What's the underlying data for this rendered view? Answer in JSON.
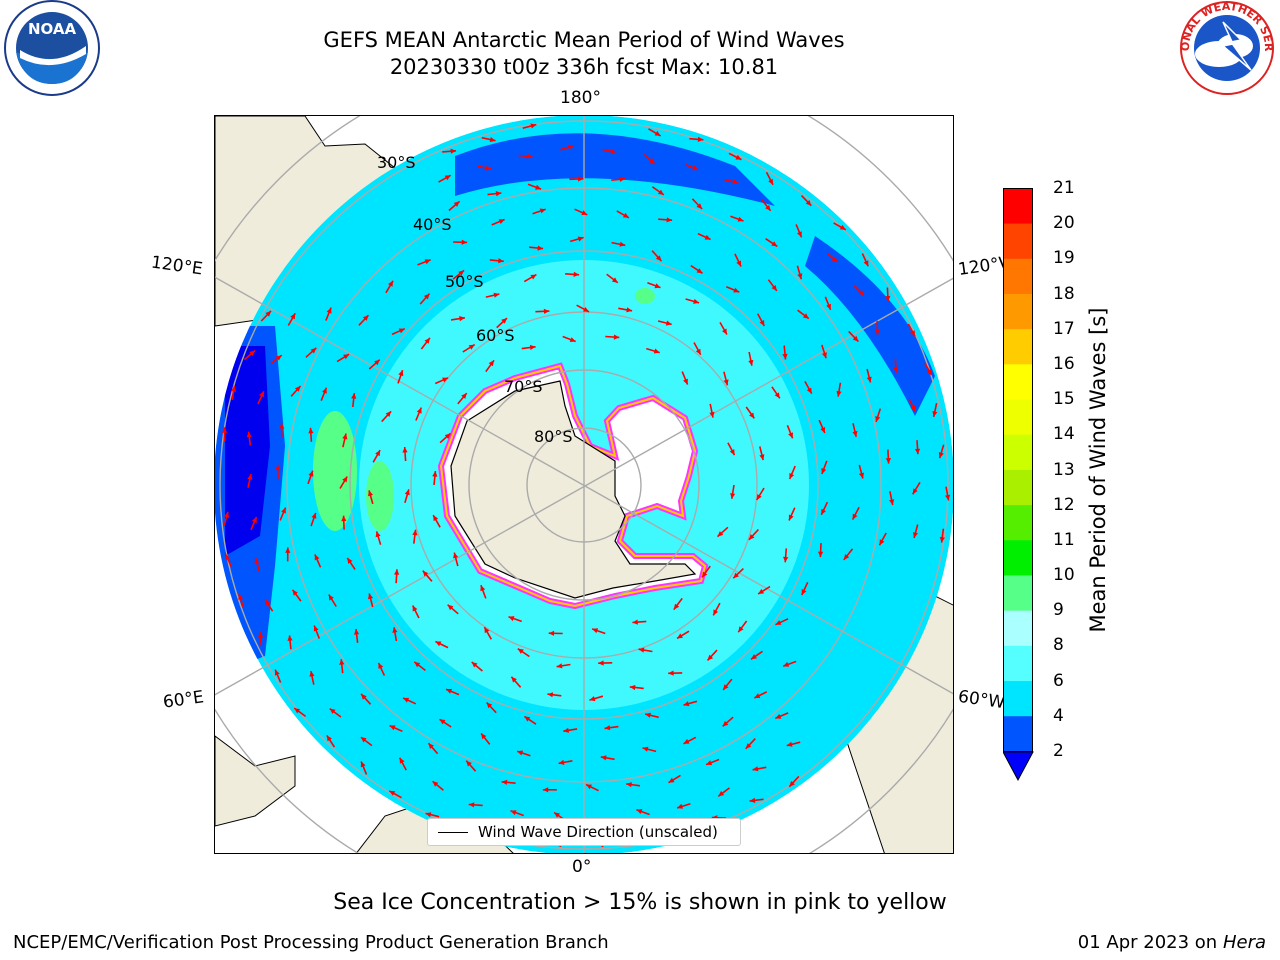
{
  "title": {
    "line1": "GEFS MEAN Antarctic Mean Period of Wind Waves",
    "line2": "20230330 t00z 336h fcst   Max: 10.81"
  },
  "map": {
    "projection": "south-polar-stereographic",
    "meridian_labels": {
      "top": "180°",
      "bottom": "0°",
      "upper_left": "120°E",
      "upper_right": "120°W",
      "lower_left": "60°E",
      "lower_right": "60°W"
    },
    "latitude_labels": [
      "30°S",
      "40°S",
      "50°S",
      "60°S",
      "70°S",
      "80°S"
    ],
    "arrow_color": "#ff0000",
    "land_color": "#efecdc",
    "sea_ice_color": "#ff33ff"
  },
  "legend": {
    "label": "Wind Wave Direction (unscaled)"
  },
  "colorbar": {
    "label": "Mean Period of Wind Waves [s]",
    "ticks": [
      "2",
      "4",
      "6",
      "8",
      "9",
      "10",
      "11",
      "12",
      "13",
      "14",
      "15",
      "16",
      "17",
      "18",
      "19",
      "20",
      "21"
    ],
    "colors": [
      "#0055ff",
      "#00e5ff",
      "#55ffff",
      "#aaffff",
      "#55ff88",
      "#00ee00",
      "#55ee00",
      "#aaee00",
      "#ccff00",
      "#eeff00",
      "#ffff00",
      "#ffcc00",
      "#ff9900",
      "#ff7700",
      "#ff4400",
      "#ff0000"
    ],
    "under_color": "#0000ff"
  },
  "footnote": "Sea Ice Concentration > 15% is shown in pink to yellow",
  "credit": "NCEP/EMC/Verification Post Processing Product Generation Branch",
  "date": {
    "text": "01 Apr 2023 on",
    "host": "Hera"
  },
  "logos": {
    "left": "NOAA",
    "right": "NATIONAL WEATHER SERVICE"
  }
}
